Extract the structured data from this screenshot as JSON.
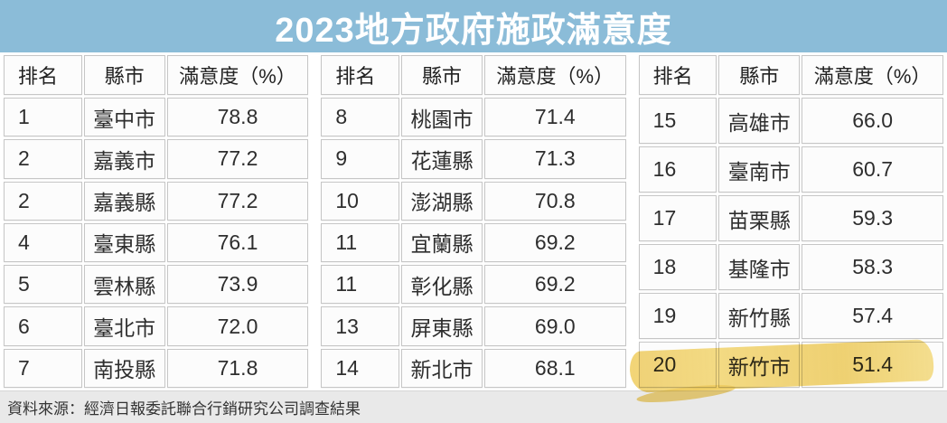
{
  "title": "2023地方政府施政滿意度",
  "source_note": "資料來源：經濟日報委託聯合行銷研究公司調查結果",
  "colors": {
    "title_bg": "#8bbcd8",
    "title_text": "#ffffff",
    "cell_bg": "#fcfcfc",
    "cell_border": "#c6c6c6",
    "footer_bg": "#e9e9e9",
    "highlight_marker": "#f0cd5f",
    "text": "#2e2e2e"
  },
  "highlight": {
    "description": "hand-drawn yellow highlighter stroke over the rank 20 row (新竹市 51.4)",
    "group_index": 2,
    "row_index": 5
  },
  "chart_data": {
    "type": "table",
    "title": "2023地方政府施政滿意度",
    "columns": [
      "排名",
      "縣市",
      "滿意度（%）"
    ],
    "groups": [
      {
        "rows": [
          {
            "rank": "1",
            "city": "臺中市",
            "score": "78.8"
          },
          {
            "rank": "2",
            "city": "嘉義市",
            "score": "77.2"
          },
          {
            "rank": "2",
            "city": "嘉義縣",
            "score": "77.2"
          },
          {
            "rank": "4",
            "city": "臺東縣",
            "score": "76.1"
          },
          {
            "rank": "5",
            "city": "雲林縣",
            "score": "73.9"
          },
          {
            "rank": "6",
            "city": "臺北市",
            "score": "72.0"
          },
          {
            "rank": "7",
            "city": "南投縣",
            "score": "71.8"
          }
        ]
      },
      {
        "rows": [
          {
            "rank": "8",
            "city": "桃園市",
            "score": "71.4"
          },
          {
            "rank": "9",
            "city": "花蓮縣",
            "score": "71.3"
          },
          {
            "rank": "10",
            "city": "澎湖縣",
            "score": "70.8"
          },
          {
            "rank": "11",
            "city": "宜蘭縣",
            "score": "69.2"
          },
          {
            "rank": "11",
            "city": "彰化縣",
            "score": "69.2"
          },
          {
            "rank": "13",
            "city": "屏東縣",
            "score": "69.0"
          },
          {
            "rank": "14",
            "city": "新北市",
            "score": "68.1"
          }
        ]
      },
      {
        "rows": [
          {
            "rank": "15",
            "city": "高雄市",
            "score": "66.0"
          },
          {
            "rank": "16",
            "city": "臺南市",
            "score": "60.7"
          },
          {
            "rank": "17",
            "city": "苗栗縣",
            "score": "59.3"
          },
          {
            "rank": "18",
            "city": "基隆市",
            "score": "58.3"
          },
          {
            "rank": "19",
            "city": "新竹縣",
            "score": "57.4"
          },
          {
            "rank": "20",
            "city": "新竹市",
            "score": "51.4"
          }
        ]
      }
    ],
    "source": "資料來源：經濟日報委託聯合行銷研究公司調查結果"
  }
}
